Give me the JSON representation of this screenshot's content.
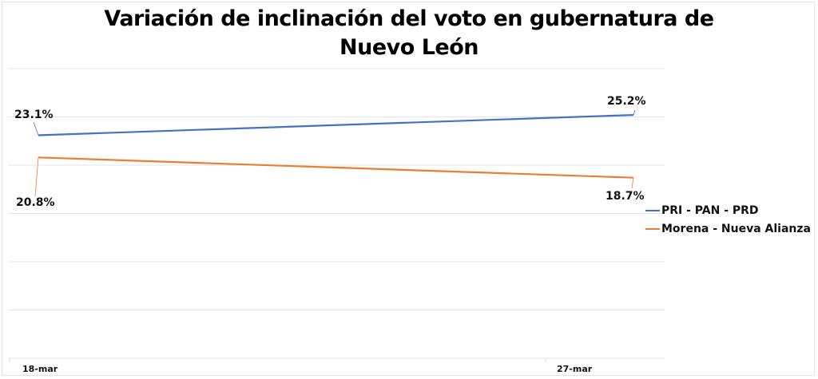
{
  "chart_data": {
    "type": "line",
    "title": "Variación de inclinación del voto en gubernatura de Nuevo León",
    "title_lines": [
      "Variación de inclinación del voto en gubernatura de",
      "Nuevo León"
    ],
    "categories": [
      "18-mar",
      "27-mar"
    ],
    "series": [
      {
        "name": "PRI - PAN - PRD",
        "values": [
          23.1,
          25.2
        ],
        "labels": [
          "23.1%",
          "25.2%"
        ],
        "color": "#4472C4"
      },
      {
        "name": "Morena - Nueva Alianza",
        "values": [
          20.8,
          18.7
        ],
        "labels": [
          "20.8%",
          "18.7%"
        ],
        "color": "#ED7D31"
      }
    ],
    "xlabel": "",
    "ylabel": "",
    "ylim": [
      0,
      30
    ],
    "y_ticks_visible": false,
    "grid": true,
    "legend_position": "right"
  }
}
